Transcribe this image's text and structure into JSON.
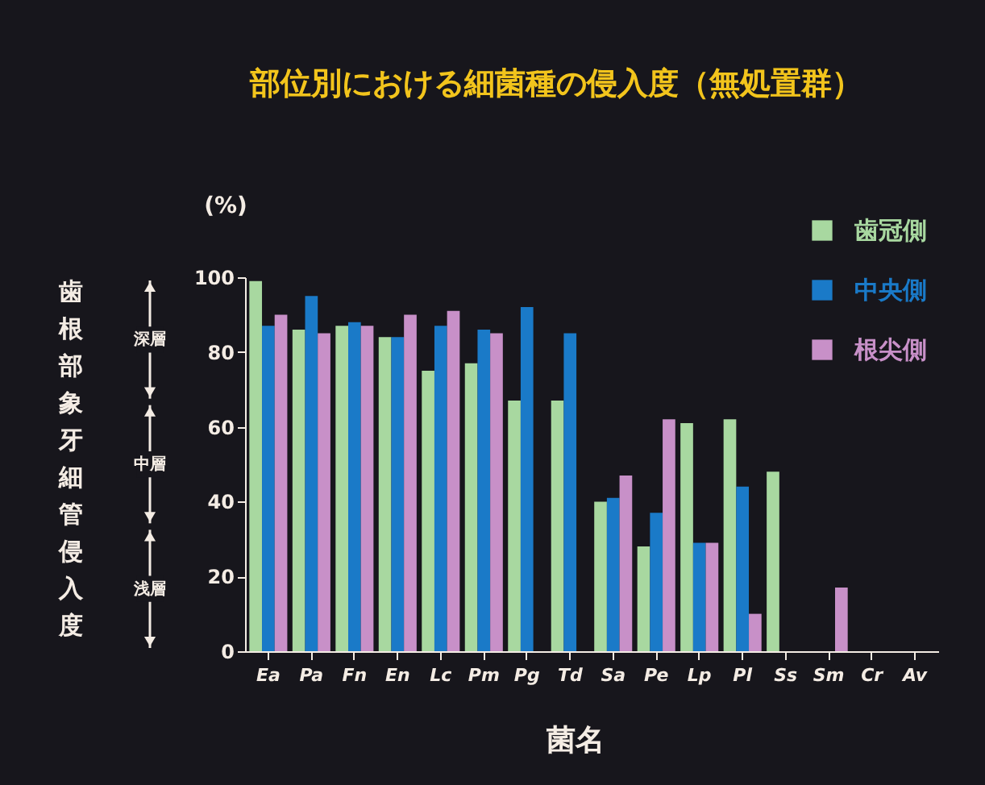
{
  "chart_data": {
    "type": "bar",
    "title": "部位別における細菌種の侵入度（無処置群）",
    "xlabel": "菌名",
    "ylabel": "歯根部象牙細管侵入度",
    "annotations": [
      "(%)",
      "深層",
      "中層",
      "浅層"
    ],
    "categories": [
      "Ea",
      "Pa",
      "Fn",
      "En",
      "Lc",
      "Pm",
      "Pg",
      "Td",
      "Sa",
      "Pe",
      "Lp",
      "Pl",
      "Ss",
      "Sm",
      "Cr",
      "Av"
    ],
    "series": [
      {
        "name": "歯冠側",
        "color": "#a8d8a0",
        "values": [
          99,
          86,
          87,
          84,
          75,
          77,
          67,
          67,
          40,
          28,
          61,
          62,
          48,
          0,
          0,
          0
        ]
      },
      {
        "name": "中央側",
        "color": "#1a7ac8",
        "values": [
          87,
          95,
          88,
          84,
          87,
          86,
          92,
          85,
          41,
          37,
          29,
          44,
          0,
          0,
          0,
          0
        ]
      },
      {
        "name": "根尖側",
        "color": "#c890c8",
        "values": [
          90,
          85,
          87,
          90,
          91,
          85,
          0,
          0,
          47,
          62,
          29,
          10,
          0,
          17,
          0,
          0
        ]
      }
    ],
    "ylim": [
      0,
      100
    ],
    "yticks": [
      0,
      20,
      40,
      60,
      80,
      100
    ],
    "grid": false,
    "legend": "top right"
  }
}
